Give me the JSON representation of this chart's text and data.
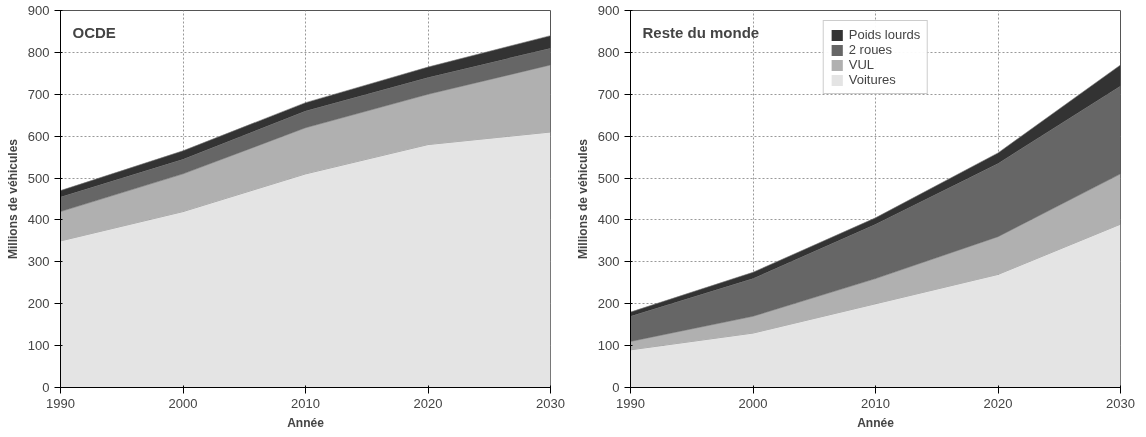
{
  "chart_data": [
    {
      "type": "area",
      "stacked": true,
      "title": "OCDE",
      "xlabel": "Année",
      "ylabel": "Millions de véhicules",
      "x": [
        1990,
        2000,
        2010,
        2020,
        2030
      ],
      "xlim": [
        1990,
        2030
      ],
      "xticks": [
        1990,
        2000,
        2010,
        2020,
        2030
      ],
      "ylim": [
        0,
        900
      ],
      "yticks": [
        0,
        100,
        200,
        300,
        400,
        500,
        600,
        700,
        800,
        900
      ],
      "grid": true,
      "legend": false,
      "series": [
        {
          "color": "#e4e4e4",
          "values": [
            350,
            420,
            510,
            580,
            610
          ]
        },
        {
          "color": "#b0b0b0",
          "values": [
            70,
            90,
            110,
            120,
            160
          ]
        },
        {
          "color": "#666666",
          "values": [
            35,
            35,
            40,
            40,
            40
          ]
        },
        {
          "color": "#333333",
          "values": [
            15,
            20,
            20,
            25,
            30
          ]
        }
      ]
    },
    {
      "type": "area",
      "stacked": true,
      "title": "Reste du monde",
      "xlabel": "Année",
      "ylabel": "Millions de véhicules",
      "x": [
        1990,
        2000,
        2010,
        2020,
        2030
      ],
      "xlim": [
        1990,
        2030
      ],
      "xticks": [
        1990,
        2000,
        2010,
        2020,
        2030
      ],
      "ylim": [
        0,
        900
      ],
      "yticks": [
        0,
        100,
        200,
        300,
        400,
        500,
        600,
        700,
        800,
        900
      ],
      "grid": true,
      "legend": "top",
      "series": [
        {
          "name": "Voitures",
          "color": "#e4e4e4",
          "values": [
            90,
            130,
            200,
            270,
            390
          ]
        },
        {
          "name": "VUL",
          "color": "#b0b0b0",
          "values": [
            20,
            40,
            60,
            90,
            120
          ]
        },
        {
          "name": "2 roues",
          "color": "#666666",
          "values": [
            60,
            90,
            130,
            175,
            210
          ]
        },
        {
          "name": "Poids lourds",
          "color": "#333333",
          "values": [
            10,
            15,
            15,
            25,
            50
          ]
        }
      ]
    }
  ]
}
